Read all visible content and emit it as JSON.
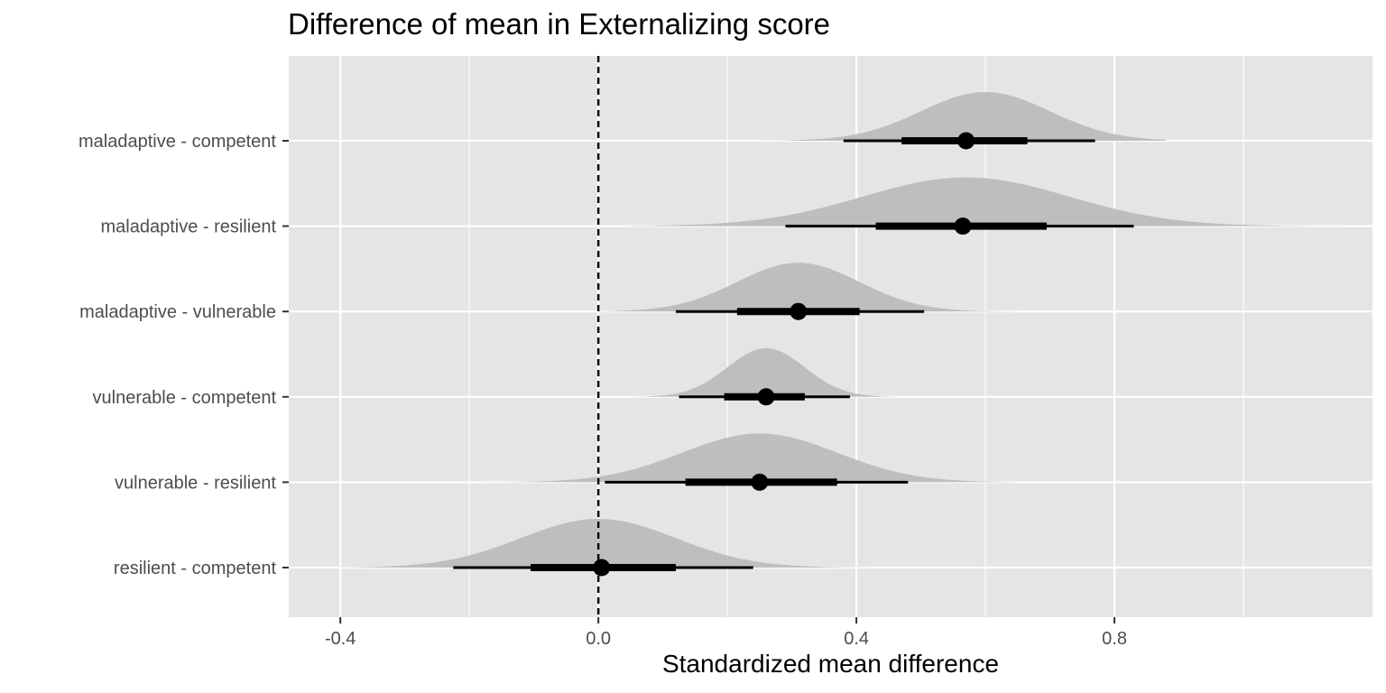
{
  "chart_data": {
    "type": "interval",
    "title": "Difference of mean in Externalizing score",
    "xlabel": "Standardized mean difference",
    "ylabel": "",
    "xlim": [
      -0.48,
      1.2
    ],
    "x_ticks": [
      -0.4,
      0.0,
      0.4,
      0.8
    ],
    "x_tick_labels": [
      "-0.4",
      "0.0",
      "0.4",
      "0.8"
    ],
    "reference_line": {
      "x": 0,
      "style": "dashed"
    },
    "grid": true,
    "categories": [
      "maladaptive - competent",
      "maladaptive - resilient",
      "maladaptive - vulnerable",
      "vulnerable - competent",
      "vulnerable - resilient",
      "resilient - competent"
    ],
    "series": [
      {
        "point": 0.57,
        "inner": [
          0.47,
          0.665
        ],
        "outer": [
          0.38,
          0.77
        ],
        "density": {
          "lo": 0.25,
          "hi": 0.88,
          "mode": 0.6,
          "sd": 0.1
        }
      },
      {
        "point": 0.565,
        "inner": [
          0.43,
          0.695
        ],
        "outer": [
          0.29,
          0.83
        ],
        "density": {
          "lo": 0.05,
          "hi": 1.15,
          "mode": 0.57,
          "sd": 0.16
        }
      },
      {
        "point": 0.31,
        "inner": [
          0.215,
          0.405
        ],
        "outer": [
          0.12,
          0.505
        ],
        "density": {
          "lo": 0.0,
          "hi": 0.65,
          "mode": 0.31,
          "sd": 0.095
        }
      },
      {
        "point": 0.26,
        "inner": [
          0.195,
          0.32
        ],
        "outer": [
          0.125,
          0.39
        ],
        "density": {
          "lo": 0.05,
          "hi": 0.5,
          "mode": 0.26,
          "sd": 0.06
        }
      },
      {
        "point": 0.25,
        "inner": [
          0.135,
          0.37
        ],
        "outer": [
          0.01,
          0.48
        ],
        "density": {
          "lo": -0.18,
          "hi": 0.65,
          "mode": 0.25,
          "sd": 0.12
        }
      },
      {
        "point": 0.005,
        "inner": [
          -0.105,
          0.12
        ],
        "outer": [
          -0.225,
          0.24
        ],
        "density": {
          "lo": -0.4,
          "hi": 0.42,
          "mode": 0.0,
          "sd": 0.12
        }
      }
    ],
    "colors": {
      "panel": "#e5e5e5",
      "grid": "#ffffff",
      "density": "#bebebe",
      "interval": "#000000",
      "tick_text": "#4d4d4d"
    }
  }
}
